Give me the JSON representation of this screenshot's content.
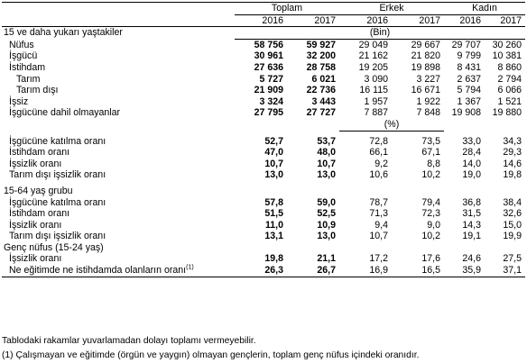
{
  "header": {
    "groups": [
      "Toplam",
      "Erkek",
      "Kadın"
    ],
    "years": [
      "2016",
      "2017",
      "2016",
      "2017",
      "2016",
      "2017"
    ]
  },
  "section1": {
    "title": "15 ve daha yukarı yaştakiler",
    "unit": "(Bin)",
    "rows": [
      {
        "label": "Nüfus",
        "values": [
          "58 756",
          "59 927",
          "29 049",
          "29 667",
          "29 707",
          "30 260"
        ]
      },
      {
        "label": "İşgücü",
        "values": [
          "30 961",
          "32 200",
          "21 162",
          "21 820",
          "9 799",
          "10 381"
        ]
      },
      {
        "label": "İstihdam",
        "values": [
          "27 636",
          "28 758",
          "19 205",
          "19 898",
          "8 431",
          "8 860"
        ]
      },
      {
        "label": "Tarım",
        "values": [
          "5 727",
          "6 021",
          "3 090",
          "3 227",
          "2 637",
          "2 794"
        ]
      },
      {
        "label": "Tarım dışı",
        "values": [
          "21 909",
          "22 736",
          "16 115",
          "16 671",
          "5 794",
          "6 066"
        ]
      },
      {
        "label": "İşsiz",
        "values": [
          "3 324",
          "3 443",
          "1 957",
          "1 922",
          "1 367",
          "1 521"
        ]
      },
      {
        "label": "İşgücüne dahil olmayanlar",
        "values": [
          "27 795",
          "27 727",
          "7 887",
          "7 848",
          "19 908",
          "19 880"
        ]
      }
    ],
    "pct_unit": "(%)",
    "rates": [
      {
        "label": "İşgücüne katılma oranı",
        "values": [
          "52,7",
          "53,7",
          "72,8",
          "73,5",
          "33,0",
          "34,3"
        ]
      },
      {
        "label": "İstihdam oranı",
        "values": [
          "47,0",
          "48,0",
          "66,1",
          "67,1",
          "28,4",
          "29,3"
        ]
      },
      {
        "label": "İşsizlik oranı",
        "values": [
          "10,7",
          "10,7",
          "9,2",
          "8,8",
          "14,0",
          "14,6"
        ]
      },
      {
        "label": "Tarım dışı işsizlik oranı",
        "values": [
          "13,0",
          "13,0",
          "10,6",
          "10,2",
          "19,0",
          "19,8"
        ]
      }
    ]
  },
  "section2": {
    "title": "15-64 yaş grubu",
    "rates": [
      {
        "label": "İşgücüne katılma oranı",
        "values": [
          "57,8",
          "59,0",
          "78,7",
          "79,4",
          "36,8",
          "38,4"
        ]
      },
      {
        "label": "İstihdam oranı",
        "values": [
          "51,5",
          "52,5",
          "71,3",
          "72,3",
          "31,5",
          "32,6"
        ]
      },
      {
        "label": "İşsizlik oranı",
        "values": [
          "11,0",
          "10,9",
          "9,4",
          "9,0",
          "14,3",
          "15,0"
        ]
      },
      {
        "label": "Tarım dışı işsizlik oranı",
        "values": [
          "13,1",
          "13,0",
          "10,7",
          "10,2",
          "19,1",
          "19,9"
        ]
      }
    ]
  },
  "section3": {
    "title": "Genç nüfus (15-24 yaş)",
    "rates": [
      {
        "label": "İşsizlik oranı",
        "values": [
          "19,8",
          "21,1",
          "17,2",
          "17,6",
          "24,6",
          "27,5"
        ]
      },
      {
        "label": "Ne eğitimde ne istihdamda olanların oranı",
        "sup": "(1)",
        "values": [
          "26,3",
          "26,7",
          "16,9",
          "16,5",
          "35,9",
          "37,1"
        ]
      }
    ]
  },
  "footnotes": {
    "note1": "Tablodaki rakamlar yuvarlamadan dolayı toplamı vermeyebilir.",
    "note2": "(1) Çalışmayan ve eğitimde (örgün ve yaygın) olmayan gençlerin, toplam genç nüfus içindeki oranıdır."
  }
}
